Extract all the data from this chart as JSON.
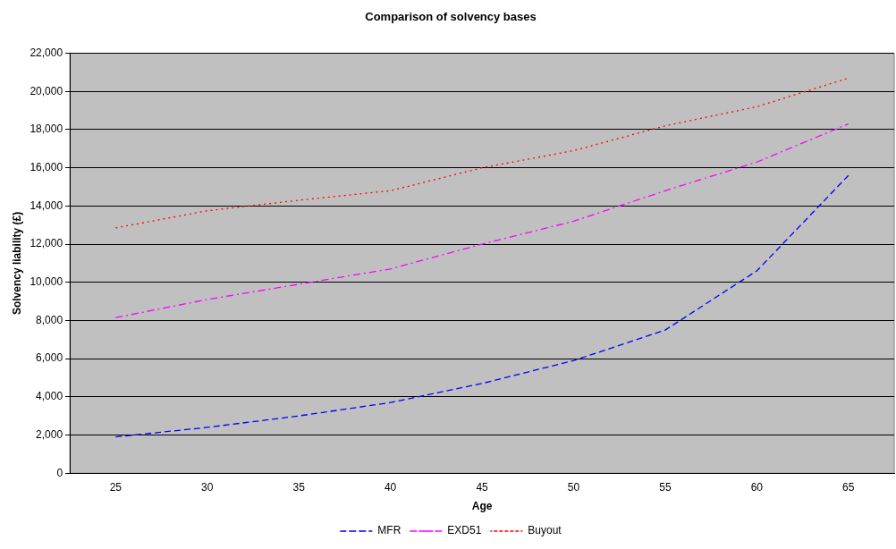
{
  "chart_data": {
    "type": "line",
    "title": "Comparison of solvency bases",
    "xlabel": "Age",
    "ylabel": "Solvency liability (£)",
    "categories": [
      "25",
      "30",
      "35",
      "40",
      "45",
      "50",
      "55",
      "60",
      "65"
    ],
    "series": [
      {
        "name": "MFR",
        "color": "#0000ff",
        "line_style": "dashed",
        "values": [
          1900,
          2400,
          3000,
          3700,
          4700,
          5900,
          7500,
          10600,
          15600
        ]
      },
      {
        "name": "EXD51",
        "color": "#ff00ff",
        "line_style": "dashdot",
        "values": [
          8150,
          9100,
          9900,
          10700,
          12000,
          13200,
          14800,
          16300,
          18300
        ]
      },
      {
        "name": "Buyout",
        "color": "#ff0000",
        "line_style": "dotted",
        "values": [
          12850,
          13750,
          14300,
          14800,
          16000,
          16900,
          18200,
          19200,
          20700
        ]
      }
    ],
    "ylim": [
      0,
      22000
    ],
    "yticks": [
      {
        "value": 0,
        "label": "0"
      },
      {
        "value": 2000,
        "label": "2,000"
      },
      {
        "value": 4000,
        "label": "4,000"
      },
      {
        "value": 6000,
        "label": "6,000"
      },
      {
        "value": 8000,
        "label": "8,000"
      },
      {
        "value": 10000,
        "label": "10,000"
      },
      {
        "value": 12000,
        "label": "12,000"
      },
      {
        "value": 14000,
        "label": "14,000"
      },
      {
        "value": 16000,
        "label": "16,000"
      },
      {
        "value": 18000,
        "label": "18,000"
      },
      {
        "value": 20000,
        "label": "20,000"
      },
      {
        "value": 22000,
        "label": "22,000"
      }
    ],
    "grid": "y",
    "legend": "bottom",
    "marker": "none"
  }
}
